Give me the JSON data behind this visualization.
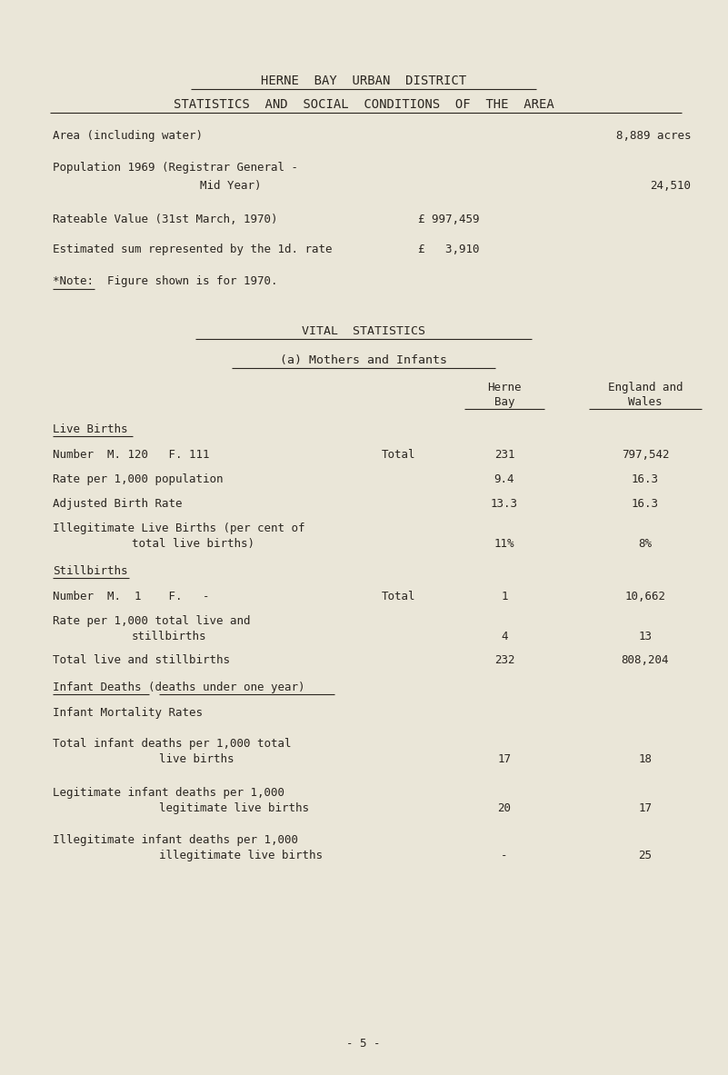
{
  "bg_color": "#eae6d8",
  "text_color": "#2a2520",
  "title1": "HERNE  BAY  URBAN  DISTRICT",
  "title2": "STATISTICS  AND  SOCIAL  CONDITIONS  OF  THE  AREA",
  "area_label": "Area (including water)",
  "area_value": "8,889 acres",
  "pop_label": "Population 1969 (Registrar General -",
  "pop_label2": "Mid Year)",
  "pop_value": "24,510",
  "rate_label": "Rateable Value (31st March, 1970)",
  "rate_value": "£ 997,459",
  "est_label": "Estimated sum represented by the 1d. rate",
  "est_value": "£   3,910",
  "note": "*Note:  Figure shown is for 1970.",
  "vital_title": "VITAL  STATISTICS",
  "section_a": "(a) Mothers and Infants",
  "live_births_heading": "Live Births",
  "lb_number_label": "Number  M. 120   F. 111",
  "lb_number_mid": "Total",
  "lb_number_herne": "231",
  "lb_number_eng": "797,542",
  "lb_rate_label": "Rate per 1,000 population",
  "lb_rate_herne": "9.4",
  "lb_rate_eng": "16.3",
  "lb_adj_label": "Adjusted Birth Rate",
  "lb_adj_herne": "13.3",
  "lb_adj_eng": "16.3",
  "lb_illeg_label": "Illegitimate Live Births (per cent of",
  "lb_illeg_label2": "total live births)",
  "lb_illeg_herne": "11%",
  "lb_illeg_eng": "8%",
  "stillbirths_heading": "Stillbirths",
  "sb_number_label": "Number  M.  1    F.   -",
  "sb_number_mid": "Total",
  "sb_number_herne": "1",
  "sb_number_eng": "10,662",
  "sb_rate_label": "Rate per 1,000 total live and",
  "sb_rate_label2": "stillbirths",
  "sb_rate_herne": "4",
  "sb_rate_eng": "13",
  "sb_total_label": "Total live and stillbirths",
  "sb_total_herne": "232",
  "sb_total_eng": "808,204",
  "inf_deaths_label": "Infant Deaths (deaths under one year)",
  "inf_mort_label": "Infant Mortality Rates",
  "inf_total_label": "Total infant deaths per 1,000 total",
  "inf_total_label2": "live births",
  "inf_total_herne": "17",
  "inf_total_eng": "18",
  "leg_label": "Legitimate infant deaths per 1,000",
  "leg_label2": "legitimate live births",
  "leg_herne": "20",
  "leg_eng": "17",
  "illeg_label": "Illegitimate infant deaths per 1,000",
  "illeg_label2": "illegitimate live births",
  "illeg_herne": "-",
  "illeg_eng": "25",
  "page_num": "- 5 -",
  "font_size": 9.0,
  "title_font_size": 10.0,
  "heading_font_size": 9.5
}
